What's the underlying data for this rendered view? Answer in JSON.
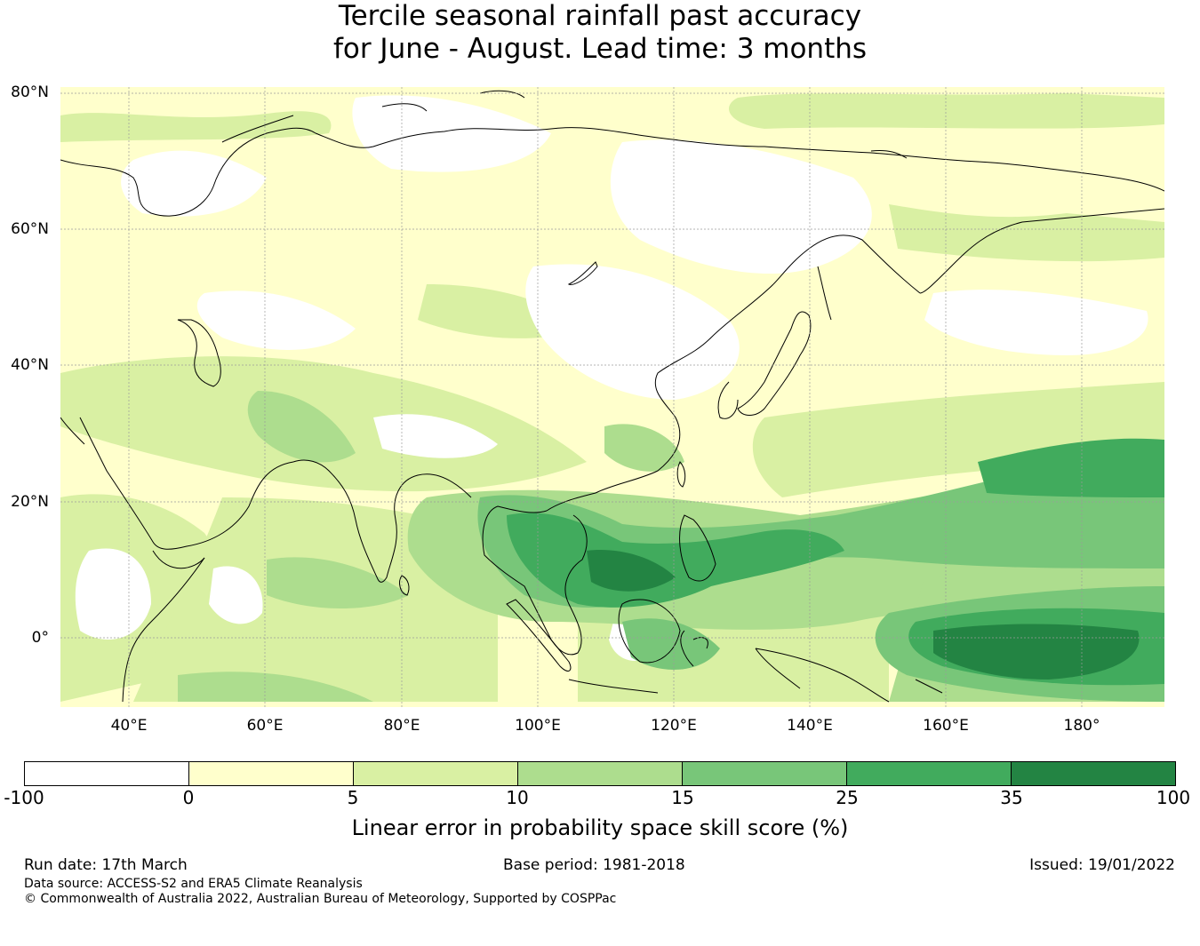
{
  "title": {
    "line1": "Tercile seasonal rainfall past accuracy",
    "line2": "for June - August. Lead time: 3 months"
  },
  "map": {
    "lat_labels": [
      "80°N",
      "60°N",
      "40°N",
      "20°N",
      "0°"
    ],
    "lon_labels": [
      "40°E",
      "60°E",
      "80°E",
      "100°E",
      "120°E",
      "140°E",
      "160°E",
      "180°"
    ],
    "lat_range": [
      -10,
      81
    ],
    "lon_range": [
      30,
      192
    ],
    "gridlines": true,
    "colors": {
      "land_outline": "#000000",
      "grid": "#9a9a9a"
    }
  },
  "legend": {
    "ticks": [
      "-100",
      "0",
      "5",
      "10",
      "15",
      "25",
      "35",
      "100"
    ],
    "colors": [
      "#ffffff",
      "#ffffcc",
      "#d9f0a3",
      "#addd8e",
      "#78c679",
      "#41ab5d",
      "#238443"
    ],
    "label": "Linear error in probability space skill score (%)"
  },
  "footer": {
    "run_date": "Run date: 17th March",
    "base_period": "Base period: 1981-2018",
    "issued": "Issued: 19/01/2022",
    "data_source": "Data source: ACCESS-S2 and ERA5 Climate Reanalysis",
    "copyright": "© Commonwealth of Australia 2022, Australian Bureau of Meteorology, Supported by COSPPac"
  }
}
